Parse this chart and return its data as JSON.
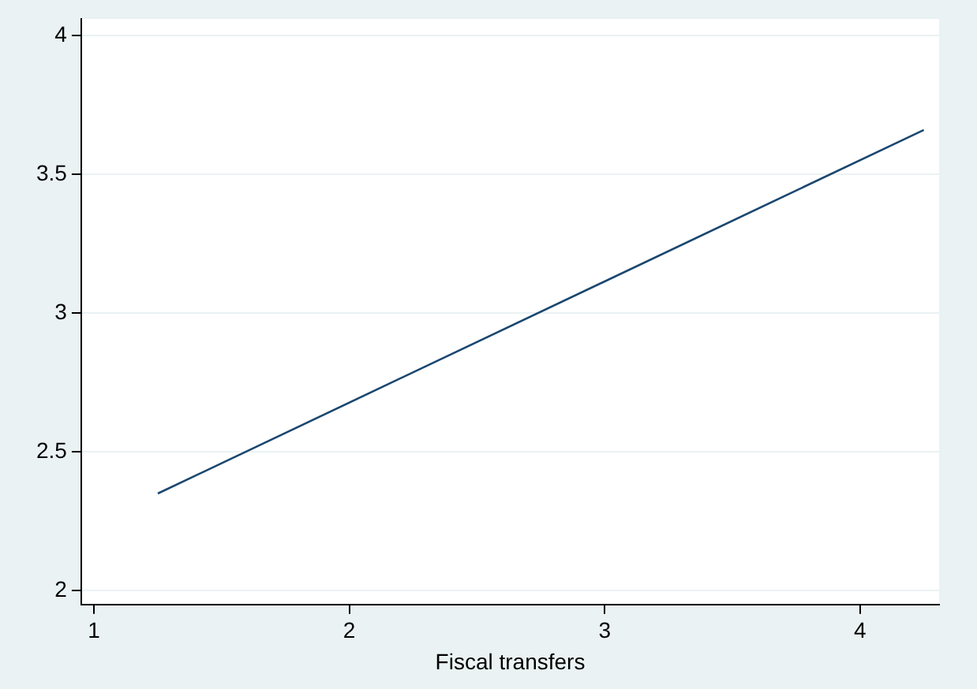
{
  "chart_data": {
    "type": "line",
    "xlabel": "Fiscal transfers",
    "series": [
      {
        "x": [
          1.25,
          4.25
        ],
        "values": [
          2.35,
          3.66
        ],
        "color": "#1a476f"
      }
    ],
    "xlim": [
      0.95,
      4.31
    ],
    "xticks": [
      1,
      2,
      3,
      4
    ],
    "ylim": [
      1.95,
      4.06
    ],
    "yticks": [
      2,
      2.5,
      3,
      3.5,
      4
    ],
    "grid": "y",
    "marker": "none",
    "line_style": "solid"
  }
}
